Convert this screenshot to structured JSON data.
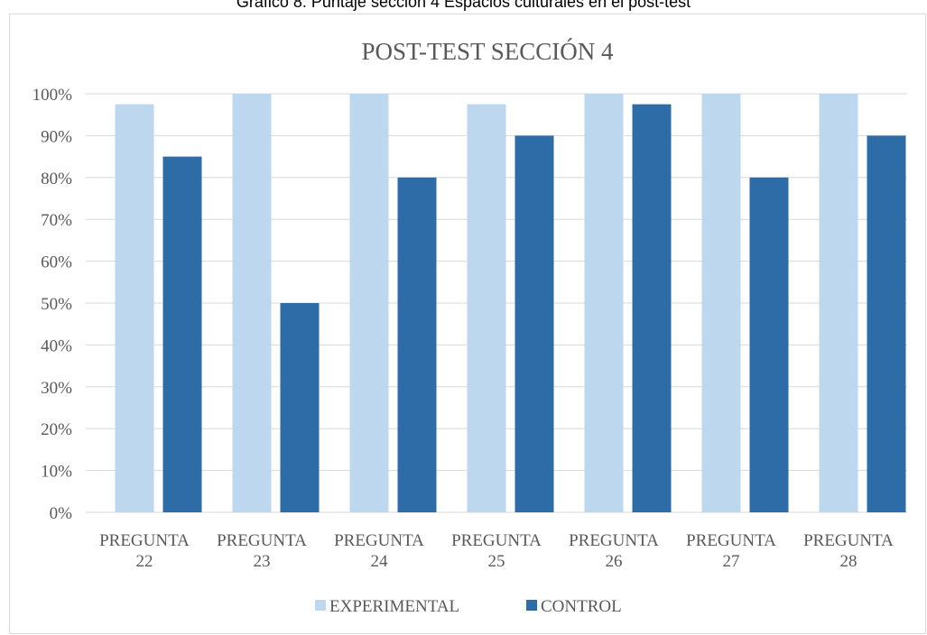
{
  "caption": "Gráfico 8. Puntaje sección 4  Espacios culturales en el post-test",
  "chart_data": {
    "type": "bar",
    "title": "POST-TEST SECCIÓN 4",
    "categories": [
      [
        "PREGUNTA",
        "22"
      ],
      [
        "PREGUNTA",
        "23"
      ],
      [
        "PREGUNTA",
        "24"
      ],
      [
        "PREGUNTA",
        "25"
      ],
      [
        "PREGUNTA",
        "26"
      ],
      [
        "PREGUNTA",
        "27"
      ],
      [
        "PREGUNTA",
        "28"
      ]
    ],
    "series": [
      {
        "name": "EXPERIMENTAL",
        "color": "#bdd7ee",
        "values": [
          97.5,
          100,
          100,
          97.5,
          100,
          100,
          100
        ]
      },
      {
        "name": "CONTROL",
        "color": "#2e6ca8",
        "values": [
          85,
          50,
          80,
          90,
          97.5,
          80,
          90
        ]
      }
    ],
    "ylim": [
      0,
      100
    ],
    "yticks": [
      "0%",
      "10%",
      "20%",
      "30%",
      "40%",
      "50%",
      "60%",
      "70%",
      "80%",
      "90%",
      "100%"
    ],
    "grid": true,
    "legend_position": "bottom",
    "gridline_color": "#d9d9d9",
    "text_color": "#595959"
  }
}
